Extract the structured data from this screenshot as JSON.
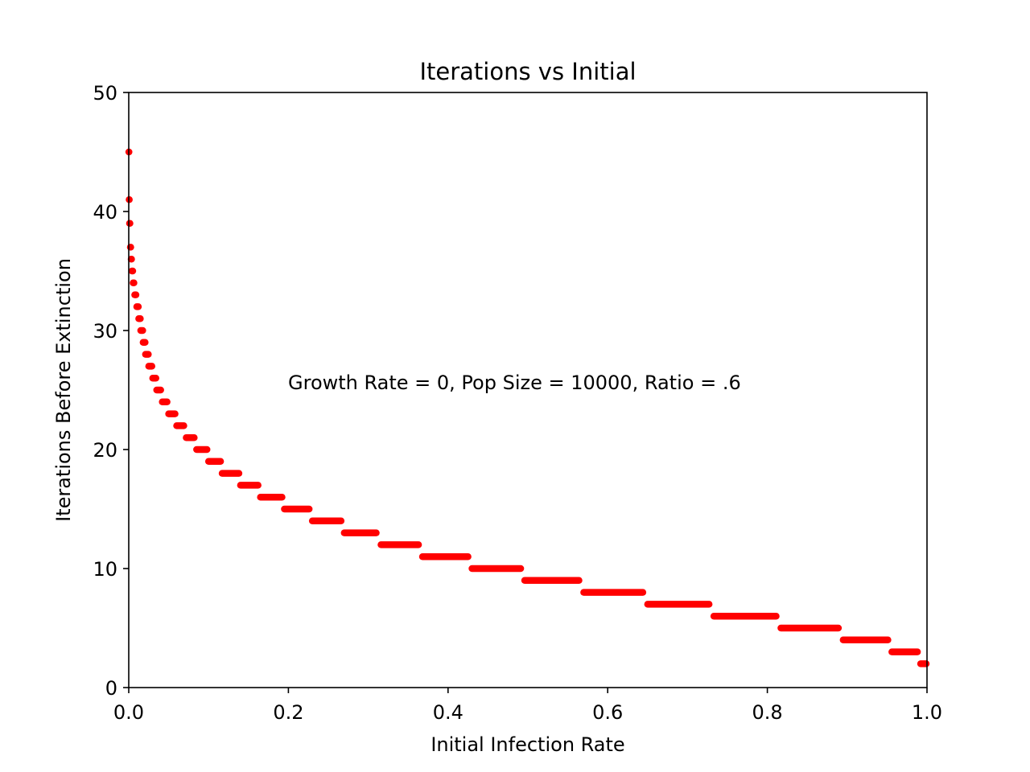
{
  "chart_data": {
    "type": "scatter",
    "title": "Iterations vs Initial",
    "xlabel": "Initial Infection Rate",
    "ylabel": "Iterations Before Extinction",
    "xlim": [
      0.0,
      1.0
    ],
    "ylim": [
      0,
      50
    ],
    "xticks": [
      "0.0",
      "0.2",
      "0.4",
      "0.6",
      "0.8",
      "1.0"
    ],
    "yticks": [
      "0",
      "10",
      "20",
      "30",
      "40",
      "50"
    ],
    "annotation": "Growth Rate = 0, Pop Size = 10000, Ratio = .6",
    "grid": false,
    "legend": "none",
    "marker_color": "#ff0000",
    "series": [
      {
        "segments": [
          {
            "y": 45,
            "x_start": 0.0001,
            "x_end": 0.0003
          },
          {
            "y": 41,
            "x_start": 0.0005,
            "x_end": 0.0007
          },
          {
            "y": 39,
            "x_start": 0.001,
            "x_end": 0.0015
          },
          {
            "y": 37,
            "x_start": 0.002,
            "x_end": 0.0025
          },
          {
            "y": 36,
            "x_start": 0.003,
            "x_end": 0.0035
          },
          {
            "y": 35,
            "x_start": 0.004,
            "x_end": 0.005
          },
          {
            "y": 34,
            "x_start": 0.0055,
            "x_end": 0.0065
          },
          {
            "y": 33,
            "x_start": 0.0075,
            "x_end": 0.009
          },
          {
            "y": 32,
            "x_start": 0.01,
            "x_end": 0.012
          },
          {
            "y": 31,
            "x_start": 0.0125,
            "x_end": 0.0145
          },
          {
            "y": 30,
            "x_start": 0.015,
            "x_end": 0.0175
          },
          {
            "y": 29,
            "x_start": 0.018,
            "x_end": 0.0205
          },
          {
            "y": 28,
            "x_start": 0.021,
            "x_end": 0.0245
          },
          {
            "y": 27,
            "x_start": 0.025,
            "x_end": 0.029
          },
          {
            "y": 26,
            "x_start": 0.03,
            "x_end": 0.034
          },
          {
            "y": 25,
            "x_start": 0.035,
            "x_end": 0.04
          },
          {
            "y": 24,
            "x_start": 0.042,
            "x_end": 0.048
          },
          {
            "y": 23,
            "x_start": 0.05,
            "x_end": 0.058
          },
          {
            "y": 22,
            "x_start": 0.06,
            "x_end": 0.069
          },
          {
            "y": 21,
            "x_start": 0.072,
            "x_end": 0.082
          },
          {
            "y": 20,
            "x_start": 0.085,
            "x_end": 0.098
          },
          {
            "y": 19,
            "x_start": 0.1,
            "x_end": 0.115
          },
          {
            "y": 18,
            "x_start": 0.117,
            "x_end": 0.138
          },
          {
            "y": 17,
            "x_start": 0.14,
            "x_end": 0.162
          },
          {
            "y": 16,
            "x_start": 0.165,
            "x_end": 0.192
          },
          {
            "y": 15,
            "x_start": 0.195,
            "x_end": 0.226
          },
          {
            "y": 14,
            "x_start": 0.23,
            "x_end": 0.266
          },
          {
            "y": 13,
            "x_start": 0.27,
            "x_end": 0.31
          },
          {
            "y": 12,
            "x_start": 0.316,
            "x_end": 0.363
          },
          {
            "y": 11,
            "x_start": 0.368,
            "x_end": 0.425
          },
          {
            "y": 10,
            "x_start": 0.43,
            "x_end": 0.491
          },
          {
            "y": 9,
            "x_start": 0.496,
            "x_end": 0.564
          },
          {
            "y": 8,
            "x_start": 0.57,
            "x_end": 0.644
          },
          {
            "y": 7,
            "x_start": 0.65,
            "x_end": 0.727
          },
          {
            "y": 6,
            "x_start": 0.733,
            "x_end": 0.811
          },
          {
            "y": 5,
            "x_start": 0.817,
            "x_end": 0.889
          },
          {
            "y": 4,
            "x_start": 0.895,
            "x_end": 0.951
          },
          {
            "y": 3,
            "x_start": 0.956,
            "x_end": 0.988
          },
          {
            "y": 2,
            "x_start": 0.992,
            "x_end": 0.999
          }
        ]
      }
    ]
  }
}
